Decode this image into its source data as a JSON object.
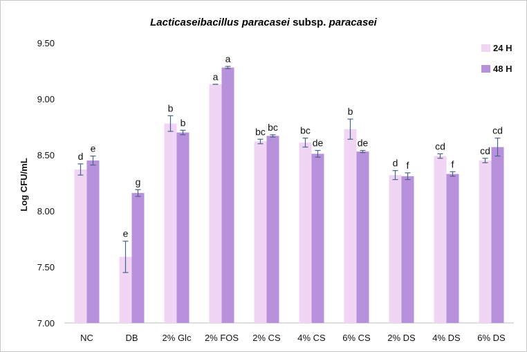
{
  "chart_data": {
    "type": "bar",
    "title_parts": [
      "Lacticaseibacillus paracasei",
      " subsp. ",
      "paracasei"
    ],
    "xlabel": "",
    "ylabel": "Log CFU/mL",
    "ylim": [
      7.0,
      9.5
    ],
    "yticks": [
      "7.00",
      "7.50",
      "8.00",
      "8.50",
      "9.00",
      "9.50"
    ],
    "ytick_values": [
      7.0,
      7.5,
      8.0,
      8.5,
      9.0,
      9.5
    ],
    "grid": false,
    "legend_position": "top-right",
    "categories": [
      "NC",
      "DB",
      "2% Glc",
      "2% FOS",
      "2% CS",
      "4% CS",
      "6% CS",
      "2% DS",
      "4% DS",
      "6% DS"
    ],
    "series": [
      {
        "name": "24 H",
        "color": "#f0d5f4",
        "values": [
          8.37,
          7.59,
          8.78,
          9.13,
          8.62,
          8.61,
          8.73,
          8.32,
          8.49,
          8.45
        ],
        "errors": [
          0.05,
          0.14,
          0.07,
          0.0,
          0.02,
          0.04,
          0.09,
          0.04,
          0.02,
          0.02
        ],
        "labels": [
          "d",
          "e",
          "b",
          "a",
          "bc",
          "bc",
          "b",
          "d",
          "cd",
          "cd"
        ]
      },
      {
        "name": "48 H",
        "color": "#b891dd",
        "values": [
          8.45,
          8.16,
          8.7,
          9.28,
          8.67,
          8.51,
          8.53,
          8.31,
          8.33,
          8.57
        ],
        "errors": [
          0.04,
          0.03,
          0.02,
          0.01,
          0.01,
          0.03,
          0.01,
          0.03,
          0.02,
          0.08
        ],
        "labels": [
          "e",
          "g",
          "b",
          "a",
          "bc",
          "de",
          "de",
          "f",
          "f",
          "cd"
        ]
      }
    ]
  }
}
